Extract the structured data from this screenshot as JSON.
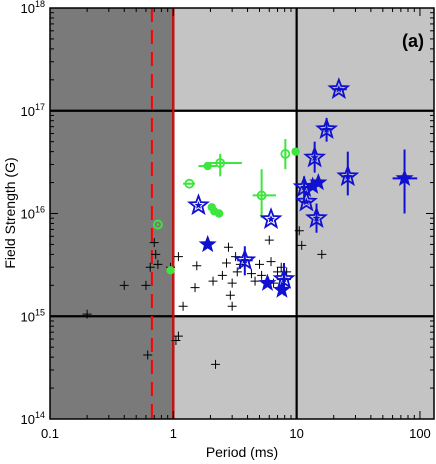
{
  "chart_data": {
    "type": "scatter",
    "title": "",
    "panel_label": "(a)",
    "xlabel": "Period (ms)",
    "ylabel": "Field Strength (G)",
    "xscale": "log",
    "yscale": "log",
    "xlim": [
      0.1,
      130
    ],
    "ylim": [
      100000000000000.0,
      1e+18
    ],
    "x_tick_labels": [
      "0.1",
      "1",
      "10",
      "100"
    ],
    "y_tick_labels": [
      {
        "base": "10",
        "exp": "14"
      },
      {
        "base": "10",
        "exp": "15"
      },
      {
        "base": "10",
        "exp": "16"
      },
      {
        "base": "10",
        "exp": "17"
      },
      {
        "base": "10",
        "exp": "18"
      }
    ],
    "grid_lines": {
      "x": [
        1,
        10
      ],
      "y": [
        1000000000000000.0,
        1e+17
      ]
    },
    "regions": [
      {
        "name": "excluded-dark",
        "x": [
          0.1,
          1
        ],
        "y": [
          100000000000000.0,
          1e+18
        ],
        "color": "#7a7a7a"
      },
      {
        "name": "excluded-light",
        "x": [
          1,
          130
        ],
        "y": [
          100000000000000.0,
          1e+18
        ],
        "color": "#c4c4c4"
      },
      {
        "name": "allowed",
        "x": [
          1,
          10
        ],
        "y": [
          1000000000000000.0,
          1e+17
        ],
        "color": "#ffffff"
      }
    ],
    "vertical_lines": [
      {
        "name": "solid-limit",
        "x": 1.0,
        "color": "#ff0000",
        "style": "solid"
      },
      {
        "name": "dashed-limit",
        "x": 0.67,
        "color": "#ff0000",
        "style": "dashed"
      }
    ],
    "colors": {
      "stars": "#1010d0",
      "circles": "#3ce63c",
      "crosses": "#000000"
    },
    "series": [
      {
        "marker": "plus",
        "points": [
          [
            0.2,
            1050000000000000.0
          ],
          [
            0.4,
            2000000000000000.0
          ],
          [
            0.6,
            2000000000000000.0
          ],
          [
            0.62,
            420000000000000.0
          ],
          [
            0.65,
            3000000000000000.0
          ],
          [
            0.7,
            5200000000000000.0
          ],
          [
            0.72,
            4000000000000000.0
          ],
          [
            0.75,
            3200000000000000.0
          ],
          [
            0.95,
            3000000000000000.0
          ],
          [
            1.05,
            580000000000000.0
          ],
          [
            1.1,
            640000000000000.0
          ],
          [
            1.1,
            3800000000000000.0
          ],
          [
            1.2,
            1250000000000000.0
          ],
          [
            1.5,
            1900000000000000.0
          ],
          [
            1.55,
            3100000000000000.0
          ],
          [
            2.1,
            2200000000000000.0
          ],
          [
            2.2,
            340000000000000.0
          ],
          [
            2.5,
            2500000000000000.0
          ],
          [
            2.7,
            3300000000000000.0
          ],
          [
            2.8,
            4700000000000000.0
          ],
          [
            2.9,
            1600000000000000.0
          ],
          [
            3.0,
            1250000000000000.0
          ],
          [
            3.0,
            2100000000000000.0
          ],
          [
            3.2,
            3800000000000000.0
          ],
          [
            3.3,
            2700000000000000.0
          ],
          [
            3.5,
            3200000000000000.0
          ],
          [
            4.3,
            2600000000000000.0
          ],
          [
            4.6,
            2200000000000000.0
          ],
          [
            5.0,
            3200000000000000.0
          ],
          [
            5.2,
            2500000000000000.0
          ],
          [
            6.0,
            5500000000000000.0
          ],
          [
            6.2,
            3400000000000000.0
          ],
          [
            6.5,
            2100000000000000.0
          ],
          [
            7.0,
            2700000000000000.0
          ],
          [
            7.5,
            3000000000000000.0
          ],
          [
            8.3,
            2700000000000000.0
          ],
          [
            10.5,
            6800000000000000.0
          ],
          [
            11.0,
            4900000000000000.0
          ],
          [
            16.0,
            4000000000000000.0
          ]
        ]
      },
      {
        "marker": "circle",
        "points": [
          {
            "x": 0.75,
            "y": 7800000000000000.0,
            "open": true
          },
          {
            "x": 0.95,
            "y": 2800000000000000.0,
            "open": false
          },
          {
            "x": 1.35,
            "y": 1.95e+16,
            "open": true,
            "xerr": [
              1.2,
              1.5
            ]
          },
          {
            "x": 1.9,
            "y": 2.9e+16,
            "open": false,
            "xerr": [
              1.6,
              2.25
            ]
          },
          {
            "x": 2.05,
            "y": 1.15e+16,
            "open": false
          },
          {
            "x": 2.15,
            "y": 1.05e+16,
            "open": false
          },
          {
            "x": 2.35,
            "y": 1e+16,
            "open": false
          },
          {
            "x": 2.4,
            "y": 3.1e+16,
            "open": true,
            "xerr": [
              1.95,
              3.6
            ],
            "yerr": [
              2.3e+16,
              3.8e+16
            ]
          },
          {
            "x": 5.2,
            "y": 1.5e+16,
            "open": true,
            "xerr": [
              4.4,
              6.8
            ],
            "yerr": [
              9000000000000000.0,
              2.7e+16
            ]
          },
          {
            "x": 8.1,
            "y": 3.8e+16,
            "open": true,
            "yerr": [
              2.7e+16,
              5.3e+16
            ]
          },
          {
            "x": 9.8,
            "y": 4e+16,
            "open": false
          }
        ]
      },
      {
        "marker": "star",
        "points": [
          {
            "x": 1.6,
            "y": 1.2e+16,
            "open": true
          },
          {
            "x": 1.9,
            "y": 5000000000000000.0,
            "open": false
          },
          {
            "x": 3.8,
            "y": 3500000000000000.0,
            "open": true,
            "xerr": [
              3.3,
              4.4
            ],
            "yerr": [
              2500000000000000.0,
              4800000000000000.0
            ]
          },
          {
            "x": 5.8,
            "y": 2100000000000000.0,
            "open": false
          },
          {
            "x": 6.2,
            "y": 8800000000000000.0,
            "open": true
          },
          {
            "x": 7.6,
            "y": 1800000000000000.0,
            "open": false
          },
          {
            "x": 7.9,
            "y": 2300000000000000.0,
            "open": true,
            "xerr": [
              6.9,
              9.0
            ],
            "yerr": [
              1600000000000000.0,
              3300000000000000.0
            ]
          },
          {
            "x": 11.5,
            "y": 1.8e+16,
            "open": true,
            "xerr": [
              10.8,
              12.5
            ],
            "yerr": [
              1.25e+16,
              2.3e+16
            ]
          },
          {
            "x": 12.0,
            "y": 1.3e+16,
            "open": true,
            "xerr": [
              11.0,
              13.0
            ]
          },
          {
            "x": 13.5,
            "y": 1.85e+16,
            "open": false
          },
          {
            "x": 14.0,
            "y": 3.5e+16,
            "open": true,
            "yerr": [
              2.5e+16,
              5e+16
            ]
          },
          {
            "x": 14.5,
            "y": 9000000000000000.0,
            "open": true,
            "yerr": [
              6500000000000000.0,
              1.25e+16
            ]
          },
          {
            "x": 15.0,
            "y": 2e+16,
            "open": false
          },
          {
            "x": 17.5,
            "y": 6.6e+16,
            "open": true,
            "xerr": [
              15.5,
              19.5
            ],
            "yerr": [
              5e+16,
              8.5e+16
            ]
          },
          {
            "x": 22.0,
            "y": 1.62e+17,
            "open": true,
            "xerr": [
              19.5,
              25.5
            ]
          },
          {
            "x": 26.0,
            "y": 2.3e+16,
            "open": true,
            "xerr": [
              23.0,
              29.0
            ],
            "yerr": [
              1.5e+16,
              4e+16
            ]
          },
          {
            "x": 75.0,
            "y": 2.2e+16,
            "open": false,
            "xerr": [
              60.0,
              95.0
            ],
            "yerr": [
              1e+16,
              4.2e+16
            ]
          }
        ]
      }
    ]
  }
}
